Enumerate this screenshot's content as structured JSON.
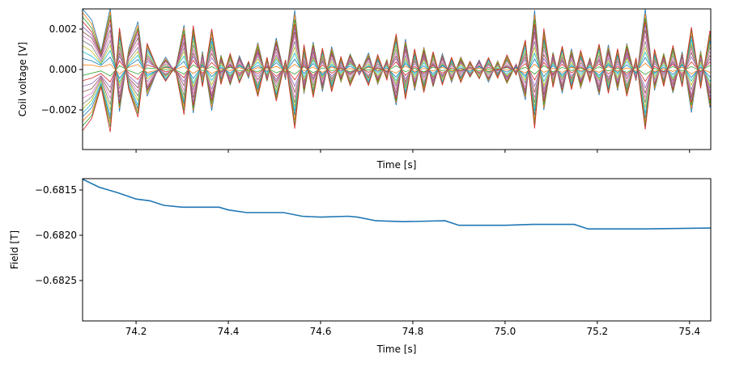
{
  "chart_data": [
    {
      "type": "line",
      "title": "",
      "xlabel": "Time [s]",
      "ylabel": "Coil voltage [V]",
      "xlim": [
        74.084,
        75.446
      ],
      "ylim": [
        -0.00396,
        0.003
      ],
      "xticks": [
        74.2,
        74.4,
        74.6,
        74.8,
        75.0,
        75.2,
        75.4
      ],
      "xtick_labels_shown": false,
      "yticks": [
        -0.002,
        0.0,
        0.002
      ],
      "ytick_labels": [
        "−0.002",
        "0.000",
        "0.002"
      ],
      "grid": false,
      "colors": [
        "#1f77b4",
        "#ff7f0e",
        "#2ca02c",
        "#d62728",
        "#9467bd",
        "#8c564b",
        "#e377c2",
        "#7f7f7f",
        "#bcbd22",
        "#17becf"
      ],
      "x_start": 74.084,
      "x_step": 0.02,
      "base_waveform": [
        0.003,
        0.0024,
        0.0009,
        0.0031,
        -0.0021,
        0.001,
        0.0024,
        -0.0013,
        -0.0002,
        0.0006,
        -0.0001,
        0.0022,
        -0.0022,
        0.0009,
        -0.002,
        0.0007,
        -0.0008,
        0.0007,
        -0.0004,
        0.0013,
        -0.0006,
        0.0016,
        -0.0005,
        0.0029,
        -0.0012,
        0.0014,
        -0.0011,
        0.0011,
        -0.0006,
        0.0008,
        -0.0003,
        0.0008,
        -0.0007,
        0.0005,
        -0.0018,
        0.0015,
        -0.001,
        0.0011,
        -0.0009,
        0.0008,
        -0.0006,
        0.0006,
        -0.0004,
        0.0005,
        -0.0006,
        0.0004,
        -0.0007,
        0.0003,
        -0.0015,
        0.0029,
        -0.002,
        0.0009,
        -0.0012,
        0.001,
        -0.0009,
        0.0006,
        -0.0013,
        0.0012,
        -0.001,
        0.0013,
        -0.0006,
        0.003,
        -0.001,
        0.0008,
        -0.0012,
        0.0009,
        -0.0021,
        0.0009,
        -0.0019,
        0.001
      ],
      "series_scales": [
        1.0,
        0.93,
        0.86,
        0.79,
        0.72,
        0.64,
        0.56,
        0.47,
        0.38,
        0.29,
        0.19,
        0.09,
        -0.09,
        -0.19,
        -0.29,
        -0.38,
        -0.47,
        -0.56,
        -0.64,
        -0.72,
        -0.79,
        -0.86,
        -0.93,
        -1.0
      ]
    },
    {
      "type": "line",
      "title": "",
      "xlabel": "Time [s]",
      "ylabel": "Field [T]",
      "xlim": [
        74.084,
        75.446
      ],
      "ylim": [
        -0.682946,
        -0.681375
      ],
      "xticks": [
        74.2,
        74.4,
        74.6,
        74.8,
        75.0,
        75.2,
        75.4
      ],
      "xtick_labels": [
        "74.2",
        "74.4",
        "74.6",
        "74.8",
        "75.0",
        "75.2",
        "75.4"
      ],
      "yticks": [
        -0.6815,
        -0.682,
        -0.6825
      ],
      "ytick_labels": [
        "−0.6815",
        "−0.6820",
        "−0.6825"
      ],
      "grid": false,
      "color": "#1f77b4",
      "series": [
        {
          "name": "Field",
          "x": [
            74.084,
            74.12,
            74.16,
            74.2,
            74.23,
            74.26,
            74.3,
            74.38,
            74.4,
            74.44,
            74.52,
            74.56,
            74.6,
            74.66,
            74.68,
            74.72,
            74.78,
            74.87,
            74.9,
            75.0,
            75.06,
            75.15,
            75.18,
            75.3,
            75.446
          ],
          "y": [
            -0.68138,
            -0.68147,
            -0.68153,
            -0.6816,
            -0.68162,
            -0.68167,
            -0.68169,
            -0.68169,
            -0.68172,
            -0.68175,
            -0.68175,
            -0.68179,
            -0.6818,
            -0.68179,
            -0.6818,
            -0.68184,
            -0.68185,
            -0.68184,
            -0.68189,
            -0.68189,
            -0.68188,
            -0.68188,
            -0.68193,
            -0.68193,
            -0.68192
          ]
        }
      ]
    }
  ]
}
